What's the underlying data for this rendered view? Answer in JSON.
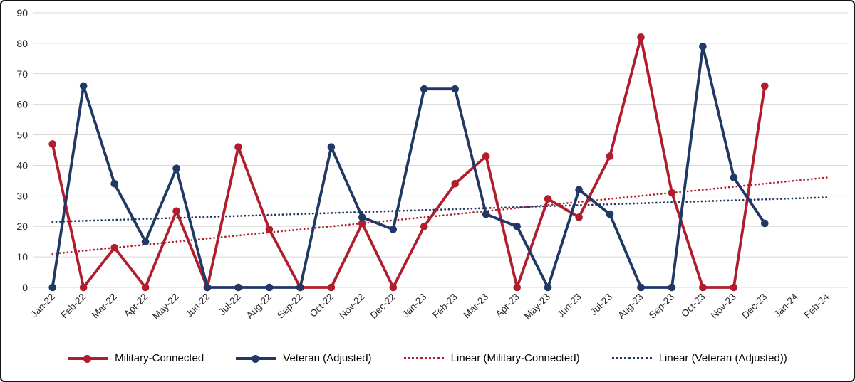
{
  "chart_data": {
    "type": "line",
    "title": "",
    "categories": [
      "Jan-22",
      "Feb-22",
      "Mar-22",
      "Apr-22",
      "May-22",
      "Jun-22",
      "Jul-22",
      "Aug-22",
      "Sep-22",
      "Oct-22",
      "Nov-22",
      "Dec-22",
      "Jan-23",
      "Feb-23",
      "Mar-23",
      "Apr-23",
      "May-23",
      "Jun-23",
      "Jul-23",
      "Aug-23",
      "Sep-23",
      "Oct-23",
      "Nov-23",
      "Dec-23",
      "Jan-24",
      "Feb-24"
    ],
    "series": [
      {
        "name": "Military-Connected",
        "color": "#B01E2E",
        "values": [
          47,
          0,
          13,
          0,
          25,
          0,
          46,
          19,
          0,
          0,
          21,
          0,
          20,
          34,
          43,
          0,
          29,
          23,
          43,
          82,
          31,
          0,
          0,
          66,
          null,
          null
        ]
      },
      {
        "name": "Veteran (Adjusted)",
        "color": "#1F3864",
        "values": [
          0,
          66,
          34,
          15,
          39,
          0,
          0,
          0,
          0,
          46,
          23,
          19,
          65,
          65,
          24,
          20,
          0,
          32,
          24,
          0,
          0,
          79,
          36,
          21,
          null,
          null
        ]
      }
    ],
    "trendlines": [
      {
        "name": "Linear (Military-Connected)",
        "color": "#B01E2E",
        "start_value": 11,
        "end_value": 36
      },
      {
        "name": "Linear (Veteran (Adjusted))",
        "color": "#1F3864",
        "start_value": 21.5,
        "end_value": 29.5
      }
    ],
    "ylim": [
      0,
      90
    ],
    "yticks": [
      0,
      10,
      20,
      30,
      40,
      50,
      60,
      70,
      80,
      90
    ],
    "ytick_step": 10,
    "grid": true,
    "gridline_color": "#D9D9D9",
    "axis_text_color": "#262626",
    "legend_position": "bottom"
  }
}
